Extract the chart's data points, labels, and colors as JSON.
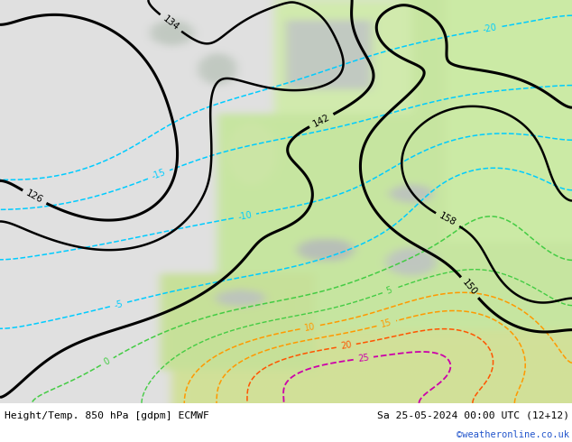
{
  "title_left": "Height/Temp. 850 hPa [gdpm] ECMWF",
  "title_right": "Sa 25-05-2024 00:00 UTC (12+12)",
  "watermark": "©weatheronline.co.uk",
  "footer_bg": "#e8e8e8",
  "fig_width": 6.34,
  "fig_height": 4.9,
  "dpi": 100,
  "land_green": "#c8e6a0",
  "land_light": "#e0eecc",
  "ocean_grey": "#c0c8c0",
  "terrain_grey": "#a8b0a8",
  "bg_light_grey": "#d8ddd8"
}
